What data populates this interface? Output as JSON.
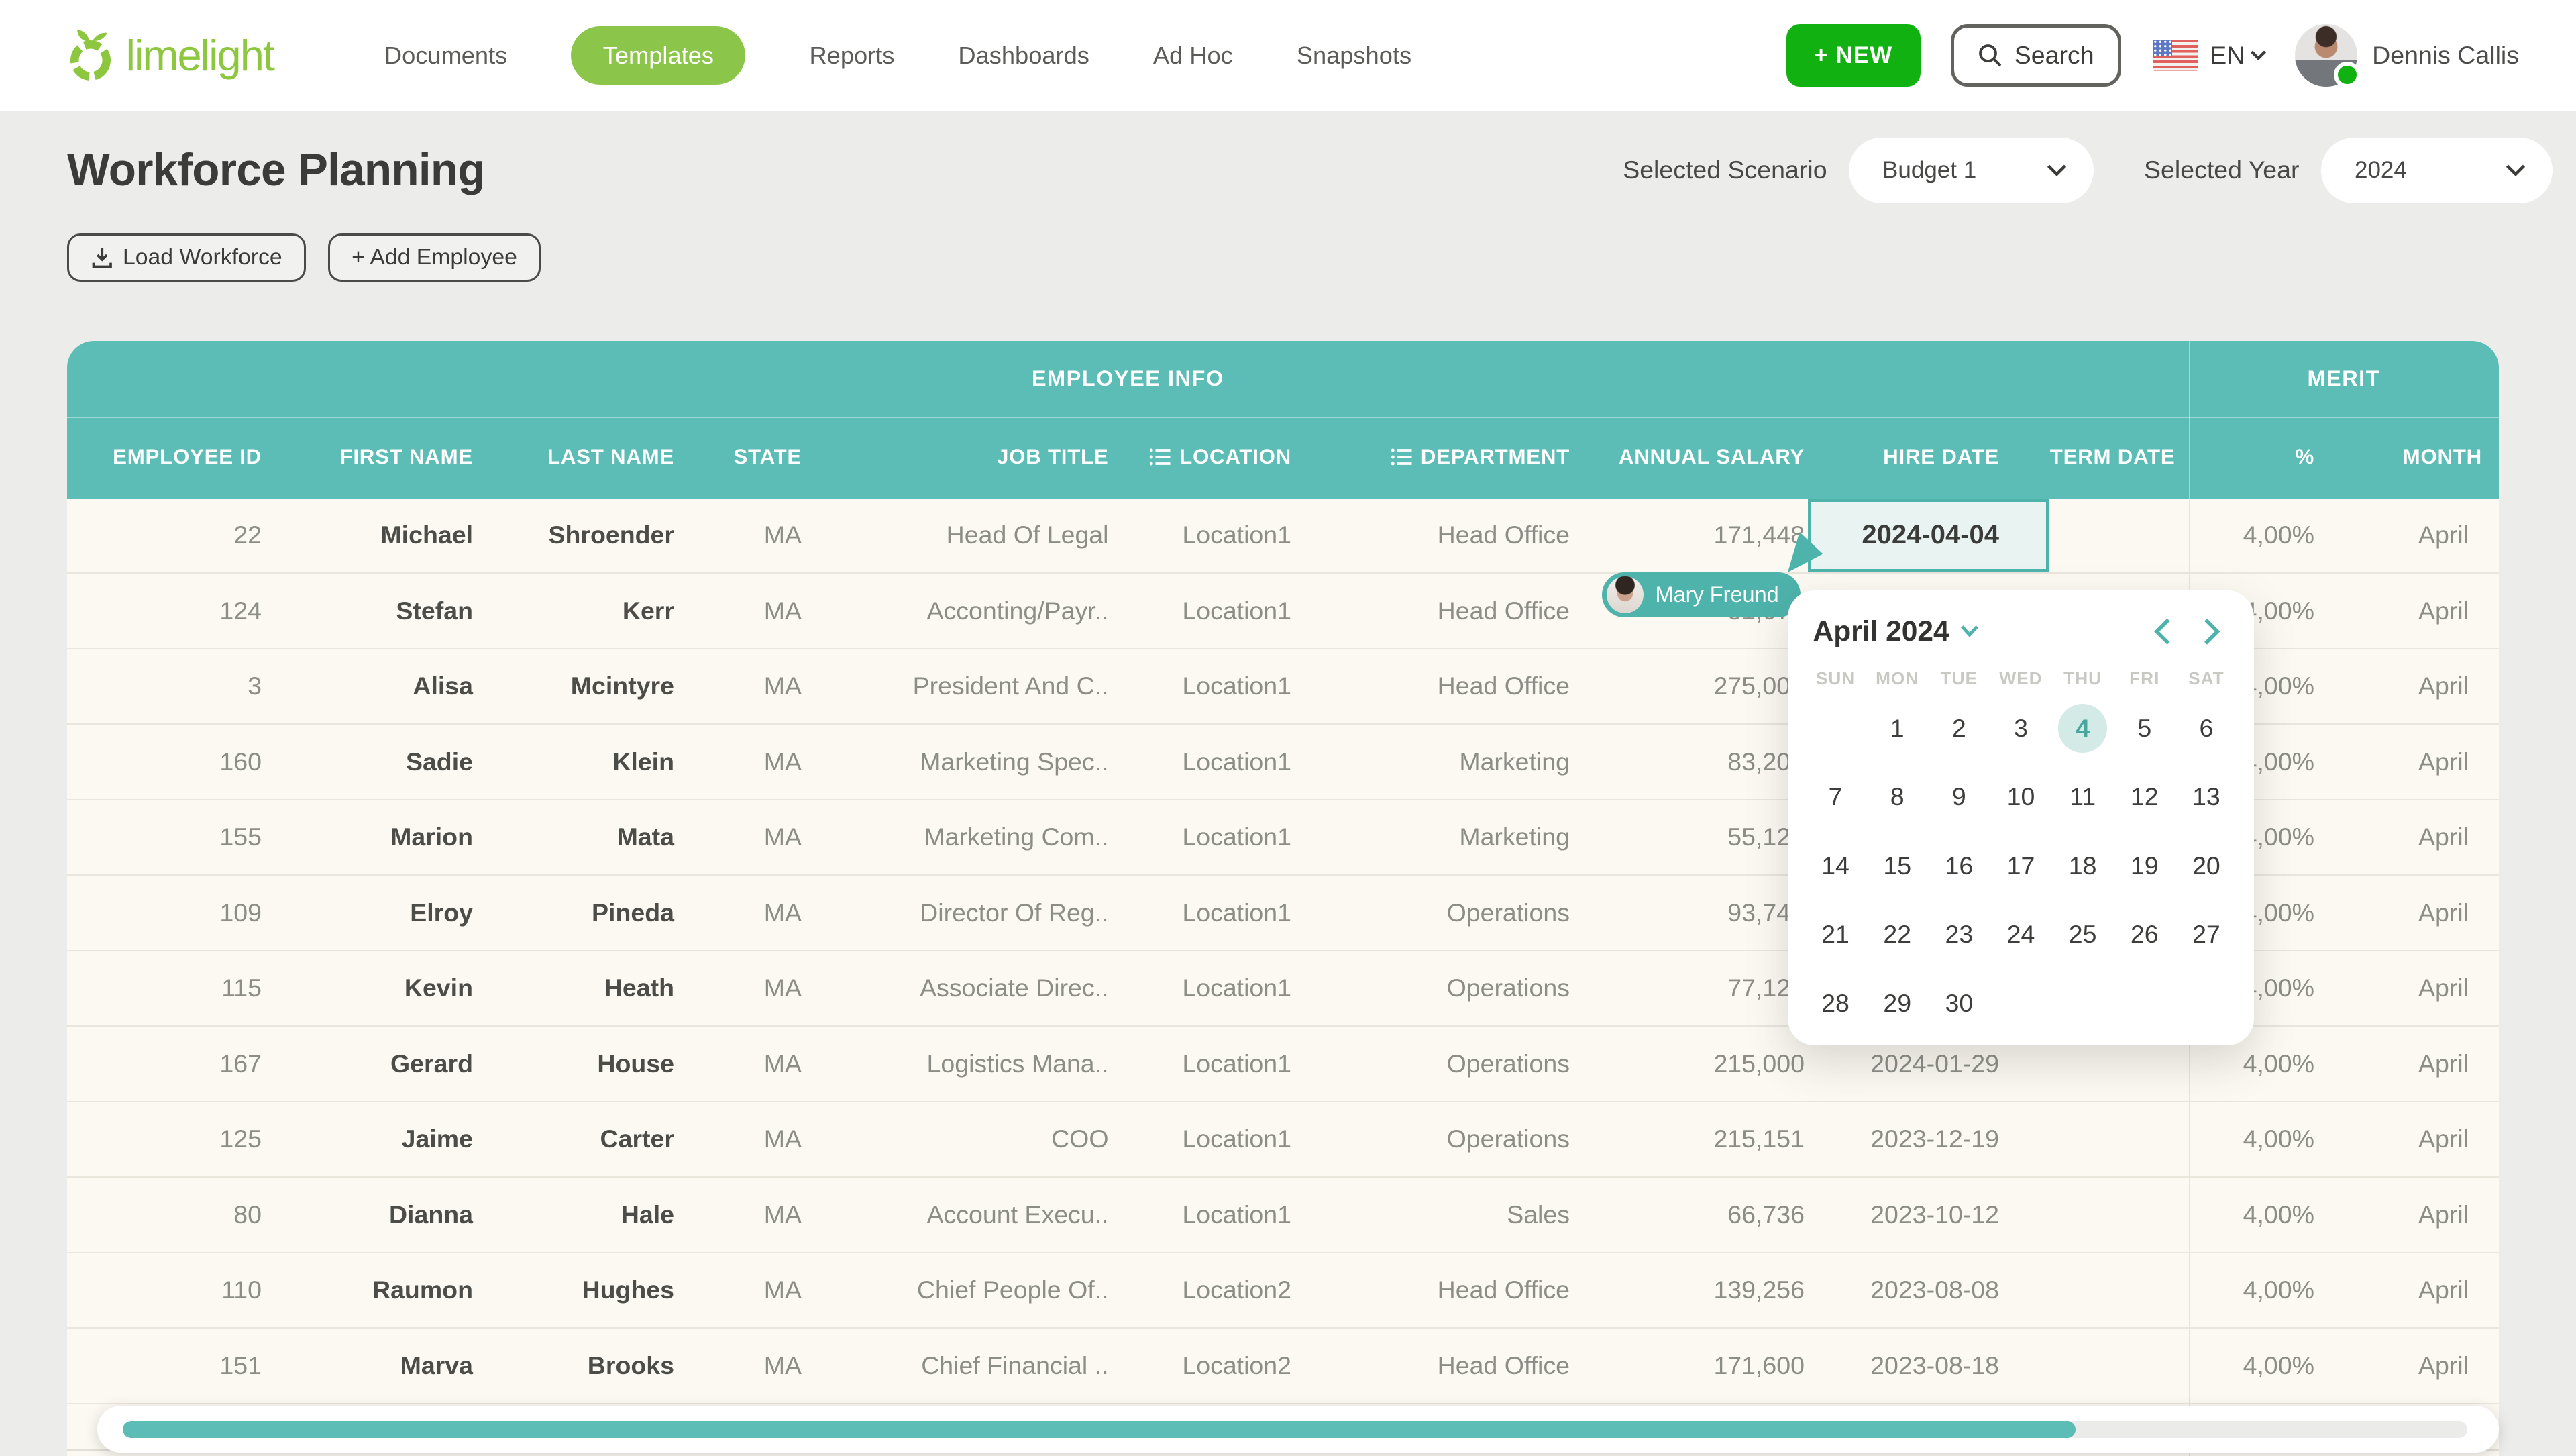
{
  "colors": {
    "accent_teal": "#5cbcb6",
    "selection_teal": "#4db3ab",
    "brand_green": "#8dc63f",
    "pill_green": "#8bc549",
    "new_button_green": "#12b112"
  },
  "nav": {
    "logo": "limelight",
    "items": [
      {
        "label": "Documents",
        "active": false
      },
      {
        "label": "Templates",
        "active": true
      },
      {
        "label": "Reports",
        "active": false
      },
      {
        "label": "Dashboards",
        "active": false
      },
      {
        "label": "Ad Hoc",
        "active": false
      },
      {
        "label": "Snapshots",
        "active": false
      }
    ]
  },
  "topbar": {
    "new_label": "+ NEW",
    "search_label": "Search",
    "language": "EN",
    "user_name": "Dennis Callis"
  },
  "page": {
    "title": "Workforce Planning",
    "scenario_label": "Selected Scenario",
    "scenario_value": "Budget 1",
    "year_label": "Selected Year",
    "year_value": "2024"
  },
  "actions": {
    "load_label": "Load Workforce",
    "add_label": "+ Add Employee"
  },
  "table": {
    "groups": {
      "employee_info": "EMPLOYEE INFO",
      "merit": "MERIT"
    },
    "columns": [
      "EMPLOYEE ID",
      "FIRST NAME",
      "LAST NAME",
      "STATE",
      "JOB TITLE",
      "LOCATION",
      "DEPARTMENT",
      "ANNUAL SALARY",
      "HIRE DATE",
      "TERM DATE",
      "%",
      "MONTH"
    ],
    "filter_icon_columns": [
      5,
      6
    ],
    "rows": [
      {
        "id": "22",
        "first": "Michael",
        "last": "Shroender",
        "state": "MA",
        "job": "Head Of Legal",
        "location": "Location1",
        "department": "Head Office",
        "salary": "171,448",
        "hire": "2024-04-04",
        "term": "",
        "pct": "4,00%",
        "month": "April"
      },
      {
        "id": "124",
        "first": "Stefan",
        "last": "Kerr",
        "state": "MA",
        "job": "Acconting/Payr..",
        "location": "Location1",
        "department": "Head Office",
        "salary": "81,072",
        "hire": "",
        "term": "",
        "pct": "4,00%",
        "month": "April"
      },
      {
        "id": "3",
        "first": "Alisa",
        "last": "Mcintyre",
        "state": "MA",
        "job": "President And C..",
        "location": "Location1",
        "department": "Head Office",
        "salary": "275,000",
        "hire": "",
        "term": "",
        "pct": "4,00%",
        "month": "April"
      },
      {
        "id": "160",
        "first": "Sadie",
        "last": "Klein",
        "state": "MA",
        "job": "Marketing Spec..",
        "location": "Location1",
        "department": "Marketing",
        "salary": "83,200",
        "hire": "",
        "term": "",
        "pct": "4,00%",
        "month": "April"
      },
      {
        "id": "155",
        "first": "Marion",
        "last": "Mata",
        "state": "MA",
        "job": "Marketing Com..",
        "location": "Location1",
        "department": "Marketing",
        "salary": "55,120",
        "hire": "",
        "term": "",
        "pct": "4,00%",
        "month": "April"
      },
      {
        "id": "109",
        "first": "Elroy",
        "last": "Pineda",
        "state": "MA",
        "job": "Director Of Reg..",
        "location": "Location1",
        "department": "Operations",
        "salary": "93,748",
        "hire": "",
        "term": "",
        "pct": "4,00%",
        "month": "April"
      },
      {
        "id": "115",
        "first": "Kevin",
        "last": "Heath",
        "state": "MA",
        "job": "Associate Direc..",
        "location": "Location1",
        "department": "Operations",
        "salary": "77,126",
        "hire": "",
        "term": "",
        "pct": "4,00%",
        "month": "April"
      },
      {
        "id": "167",
        "first": "Gerard",
        "last": "House",
        "state": "MA",
        "job": "Logistics Mana..",
        "location": "Location1",
        "department": "Operations",
        "salary": "215,000",
        "hire": "2024-01-29",
        "term": "",
        "pct": "4,00%",
        "month": "April"
      },
      {
        "id": "125",
        "first": "Jaime",
        "last": "Carter",
        "state": "MA",
        "job": "COO",
        "location": "Location1",
        "department": "Operations",
        "salary": "215,151",
        "hire": "2023-12-19",
        "term": "",
        "pct": "4,00%",
        "month": "April"
      },
      {
        "id": "80",
        "first": "Dianna",
        "last": "Hale",
        "state": "MA",
        "job": "Account Execu..",
        "location": "Location1",
        "department": "Sales",
        "salary": "66,736",
        "hire": "2023-10-12",
        "term": "",
        "pct": "4,00%",
        "month": "April"
      },
      {
        "id": "110",
        "first": "Raumon",
        "last": "Hughes",
        "state": "MA",
        "job": "Chief People Of..",
        "location": "Location2",
        "department": "Head Office",
        "salary": "139,256",
        "hire": "2023-08-08",
        "term": "",
        "pct": "4,00%",
        "month": "April"
      },
      {
        "id": "151",
        "first": "Marva",
        "last": "Brooks",
        "state": "MA",
        "job": "Chief Financial ..",
        "location": "Location2",
        "department": "Head Office",
        "salary": "171,600",
        "hire": "2023-08-18",
        "term": "",
        "pct": "4,00%",
        "month": "April"
      }
    ],
    "selected_cell": {
      "row": 0,
      "column": "HIRE DATE",
      "value": "2024-04-04"
    }
  },
  "collab_cursor": {
    "user": "Mary Freund"
  },
  "calendar": {
    "title": "April 2024",
    "weekdays": [
      "SUN",
      "MON",
      "TUE",
      "WED",
      "THU",
      "FRI",
      "SAT"
    ],
    "weeks": [
      [
        "",
        "1",
        "2",
        "3",
        "4",
        "5",
        "6"
      ],
      [
        "7",
        "8",
        "9",
        "10",
        "11",
        "12",
        "13"
      ],
      [
        "14",
        "15",
        "16",
        "17",
        "18",
        "19",
        "20"
      ],
      [
        "21",
        "22",
        "23",
        "24",
        "25",
        "26",
        "27"
      ],
      [
        "28",
        "29",
        "30",
        "",
        "",
        "",
        ""
      ]
    ],
    "selected_day": "4"
  },
  "scrollbar": {
    "progress_percent": 83.3
  }
}
